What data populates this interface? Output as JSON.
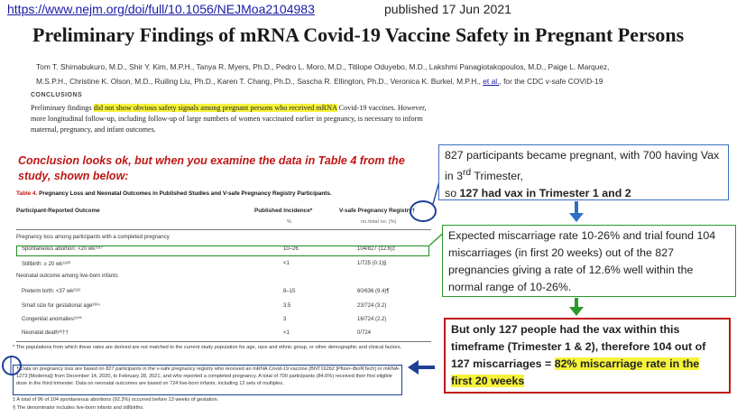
{
  "header": {
    "url": "https://www.nejm.org/doi/full/10.1056/NEJMoa2104983",
    "published": "published 17 Jun 2021"
  },
  "article": {
    "title": "Preliminary Findings of mRNA Covid-19 Vaccine Safety in Pregnant Persons",
    "authors_line1": "Tom T. Shimabukuro, M.D., Shir Y. Kim, M.P.H., Tanya R. Myers, Ph.D., Pedro L. Moro, M.D., Titilope Oduyebo, M.D., Lakshmi Panagiotakopoulos, M.D., Paige L. Marquez,",
    "authors_line2_a": "M.S.P.H., Christine K. Olson, M.D., Ruiling Liu, Ph.D., Karen T. Chang, Ph.D., Sascha R. Ellington, Ph.D., Veronica K. Burkel, M.P.H., ",
    "authors_etal": "et al.",
    "authors_line2_b": ", for the CDC v-safe COVID-19",
    "section_label": "CONCLUSIONS",
    "conclusion_a": "Preliminary findings ",
    "conclusion_highlight": "did not show obvious safety signals among pregnant persons who received mRNA",
    "conclusion_b": " Covid-19 vaccines. However, more longitudinal follow-up, including follow-up of large numbers of women vaccinated earlier in pregnancy, is necessary to inform maternal, pregnancy, and infant outcomes."
  },
  "annotation_red": "Conclusion looks ok, but when you examine the data in Table 4 from the study, shown below:",
  "table": {
    "title_num": "Table 4.",
    "title_text": " Pregnancy Loss and Neonatal Outcomes in Published Studies and V-safe Pregnancy Registry Participants.",
    "col_outcome": "Participant-Reported Outcome",
    "col_incidence": "Published Incidence*",
    "col_vsafe": "V-safe Pregnancy Registry†",
    "sub_incidence": "%",
    "sub_vsafe": "no./total no. (%)",
    "group1": "Pregnancy loss among participants with a completed pregnancy",
    "rows1": [
      {
        "label": "Spontaneous abortion: <20 wk¹⁵¹⁷",
        "incidence": "10–26",
        "vsafe": "104/827 (12.6)‡"
      },
      {
        "label": "Stillbirth: ≥ 20 wk¹⁸²⁰",
        "incidence": "<1",
        "vsafe": "1/725 (0.1)§"
      }
    ],
    "group2": "Neonatal outcome among live-born infants",
    "rows2": [
      {
        "label": "Preterm birth: <37 wk²¹²²",
        "incidence": "8–15",
        "vsafe": "60/636 (9.4)¶"
      },
      {
        "label": "Small size for gestational age²³²⁴",
        "incidence": "3.5",
        "vsafe": "23/724 (3.2)"
      },
      {
        "label": "Congenital anomalies²⁵**",
        "incidence": "3",
        "vsafe": "16/724 (2.2)"
      },
      {
        "label": "Neonatal death²⁶††",
        "incidence": "<1",
        "vsafe": "0/724"
      }
    ],
    "foot_star": "* The populations from which these rates are derived are not matched to the current study population for age, race and ethnic group, or other demographic and clinical factors.",
    "foot_dagger": "† Data on pregnancy loss are based on 827 participants in the v-safe pregnancy registry who received an mRNA Covid-19 vaccine (BNT162b2 [Pfizer–BioNTech] or mRNA-1273 [Moderna]) from December 14, 2020, to February 28, 2021, and who reported a completed pregnancy. A total of 700 participants (84.6%) received their first eligible dose in the third trimester. Data on neonatal outcomes are based on 724 live-born infants, including 12 sets of multiples.",
    "foot_ddagger": "‡ A total of 96 of 104 spontaneous abortions (92.3%) occurred before 13 weeks of gestation.",
    "foot_section": "§ The denominator includes live-born infants and stillbirths."
  },
  "notes": {
    "note1": "827 participants became pregnant, with 700 having Vax in 3rd Trimester, so 127 had vax in Trimester 1 and 2",
    "note1_a": "827 participants became pregnant, with 700 having Vax in 3",
    "note1_sup": "rd",
    "note1_b": " Trimester,",
    "note1_c": "so ",
    "note1_bold": "127 had vax in Trimester 1 and 2",
    "note2": "Expected miscarriage rate 10-26% and trial found 104 miscarriages (in first 20 weeks) out of the 827 pregnancies giving a rate of 12.6% well within the normal range of 10-26%.",
    "note3_a": "But only 127 people had the vax within this timeframe (Trimester 1 & 2), therefore 104 out of 127 miscarriages = ",
    "note3_hl": "82% miscarriage rate in the first 20 weeks"
  },
  "colors": {
    "red": "#c01616",
    "green": "#2a9a2a",
    "blue": "#1f3f96",
    "highlight": "#f6f33a"
  },
  "icons": [
    "arrow-down-icon",
    "arrow-down-icon",
    "arrow-left-icon"
  ]
}
